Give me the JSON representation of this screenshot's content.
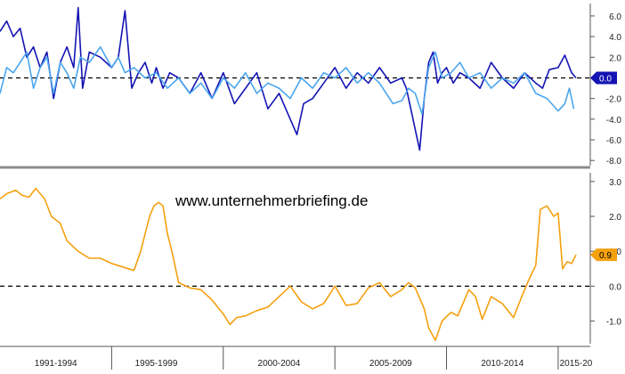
{
  "watermark": "www.unternehmerbriefing.de",
  "colors": {
    "dark_blue": "#1414b4",
    "light_blue": "#4aa6ee",
    "orange": "#f5a00f",
    "axis": "#555555",
    "divider": "#8c8c8c",
    "zero_line": "#000000"
  },
  "x_axis": {
    "range": [
      1990.0,
      2016.0
    ],
    "labels": [
      "1991-1994",
      "1995-1999",
      "2000-2004",
      "2005-2009",
      "2010-2014",
      "2015-20"
    ],
    "label_positions": [
      1992.5,
      1997.0,
      2002.5,
      2007.5,
      2012.5,
      2015.8
    ],
    "separators": [
      1995.0,
      2000.0,
      2005.0,
      2010.0,
      2015.0
    ]
  },
  "chart_data": [
    {
      "type": "line",
      "y_axis_side": "right",
      "ylim": [
        -8.5,
        7.2
      ],
      "y_ticks": [
        {
          "value": 6.0,
          "label": "6.0"
        },
        {
          "value": 4.0,
          "label": "4.0"
        },
        {
          "value": 2.0,
          "label": "2.0"
        },
        {
          "value": -2.0,
          "label": "-2.0"
        },
        {
          "value": -4.0,
          "label": "-4.0"
        },
        {
          "value": -6.0,
          "label": "-6.0"
        },
        {
          "value": -8.0,
          "label": "-8.0"
        }
      ],
      "reference_line": 0.0,
      "last_value_label": "0.0",
      "series": [
        {
          "color": "#1414b4",
          "x": [
            1990.0,
            1990.3,
            1990.6,
            1990.9,
            1991.2,
            1991.5,
            1991.8,
            1992.1,
            1992.4,
            1992.7,
            1993.0,
            1993.3,
            1993.5,
            1993.7,
            1994.0,
            1994.5,
            1995.0,
            1995.3,
            1995.6,
            1995.9,
            1996.2,
            1996.5,
            1996.8,
            1997.0,
            1997.3,
            1997.6,
            1998.0,
            1998.5,
            1999.0,
            1999.5,
            2000.0,
            2000.5,
            2001.0,
            2001.5,
            2002.0,
            2002.5,
            2003.0,
            2003.3,
            2003.6,
            2004.0,
            2004.5,
            2005.0,
            2005.5,
            2006.0,
            2006.5,
            2007.0,
            2007.5,
            2008.0,
            2008.2,
            2008.4,
            2008.6,
            2008.8,
            2009.0,
            2009.2,
            2009.4,
            2009.6,
            2009.8,
            2010.0,
            2010.3,
            2010.6,
            2011.0,
            2011.5,
            2012.0,
            2012.5,
            2013.0,
            2013.5,
            2014.0,
            2014.3,
            2014.6,
            2015.0,
            2015.3,
            2015.6,
            2015.8
          ],
          "values": [
            4.5,
            5.5,
            4.0,
            4.8,
            2.0,
            3.0,
            1.0,
            2.5,
            -2.0,
            1.5,
            3.0,
            1.0,
            6.8,
            -1.0,
            2.5,
            2.0,
            1.0,
            2.0,
            6.5,
            -1.0,
            0.5,
            1.5,
            -0.5,
            1.0,
            -1.0,
            0.5,
            0.0,
            -1.5,
            0.5,
            -2.0,
            0.5,
            -2.5,
            -1.0,
            0.5,
            -3.0,
            -1.5,
            -4.0,
            -5.5,
            -2.5,
            -2.0,
            -0.5,
            1.0,
            -1.0,
            0.5,
            -0.5,
            1.0,
            -0.5,
            0.0,
            -1.0,
            -3.0,
            -5.0,
            -7.0,
            -2.0,
            1.5,
            2.5,
            -0.5,
            0.5,
            1.0,
            -0.5,
            0.5,
            0.0,
            -1.0,
            1.5,
            0.0,
            -1.0,
            0.5,
            -0.5,
            -1.0,
            0.8,
            1.0,
            2.2,
            0.5,
            0.0
          ]
        },
        {
          "color": "#4aa6ee",
          "x": [
            1990.0,
            1990.3,
            1990.6,
            1990.9,
            1991.2,
            1991.5,
            1991.8,
            1992.1,
            1992.4,
            1992.7,
            1993.0,
            1993.3,
            1993.6,
            1994.0,
            1994.5,
            1995.0,
            1995.3,
            1995.6,
            1996.0,
            1996.5,
            1997.0,
            1997.5,
            1998.0,
            1998.5,
            1999.0,
            1999.5,
            2000.0,
            2000.5,
            2001.0,
            2001.5,
            2002.0,
            2002.5,
            2003.0,
            2003.5,
            2004.0,
            2004.5,
            2005.0,
            2005.5,
            2006.0,
            2006.5,
            2007.0,
            2007.3,
            2007.6,
            2008.0,
            2008.3,
            2008.6,
            2008.9,
            2009.2,
            2009.5,
            2009.8,
            2010.2,
            2010.6,
            2011.0,
            2011.5,
            2012.0,
            2012.5,
            2013.0,
            2013.5,
            2014.0,
            2014.5,
            2015.0,
            2015.3,
            2015.5,
            2015.7
          ],
          "values": [
            -1.5,
            1.0,
            0.5,
            1.5,
            2.5,
            -1.0,
            1.0,
            2.0,
            -1.5,
            1.5,
            0.5,
            -1.0,
            2.0,
            1.5,
            3.0,
            1.0,
            2.0,
            0.5,
            1.0,
            0.0,
            0.5,
            -1.0,
            0.0,
            -1.5,
            -0.5,
            -2.0,
            0.0,
            -1.0,
            0.5,
            -1.5,
            -0.5,
            -1.0,
            -2.0,
            0.0,
            -1.0,
            0.5,
            0.0,
            1.0,
            -0.5,
            0.5,
            -0.5,
            -1.5,
            -2.5,
            -2.2,
            -1.0,
            -1.5,
            -3.5,
            1.0,
            2.5,
            0.0,
            0.5,
            1.5,
            0.0,
            0.5,
            -1.0,
            0.0,
            -0.5,
            0.5,
            -1.5,
            -2.0,
            -3.2,
            -2.5,
            -1.0,
            -3.0
          ]
        }
      ]
    },
    {
      "type": "line",
      "y_axis_side": "right",
      "ylim": [
        -1.65,
        3.25
      ],
      "y_ticks": [
        {
          "value": 3.0,
          "label": "3.0"
        },
        {
          "value": 2.0,
          "label": "2.0"
        },
        {
          "value": 1.0,
          "label": "1.0"
        },
        {
          "value": 0.0,
          "label": "0.0"
        },
        {
          "value": -1.0,
          "label": "-1.0"
        }
      ],
      "reference_line": 0.0,
      "last_value_label": "0.9",
      "series": [
        {
          "color": "#f5a00f",
          "x": [
            1990.0,
            1990.3,
            1990.7,
            1991.0,
            1991.3,
            1991.6,
            1992.0,
            1992.3,
            1992.7,
            1993.0,
            1993.5,
            1994.0,
            1994.5,
            1995.0,
            1995.5,
            1996.0,
            1996.3,
            1996.5,
            1996.7,
            1996.9,
            1997.1,
            1997.3,
            1997.5,
            1997.7,
            1998.0,
            1998.5,
            1999.0,
            1999.5,
            2000.0,
            2000.3,
            2000.6,
            2001.0,
            2001.5,
            2002.0,
            2002.5,
            2003.0,
            2003.5,
            2004.0,
            2004.5,
            2005.0,
            2005.5,
            2006.0,
            2006.5,
            2007.0,
            2007.5,
            2008.0,
            2008.3,
            2008.6,
            2009.0,
            2009.2,
            2009.5,
            2009.8,
            2010.2,
            2010.5,
            2011.0,
            2011.3,
            2011.6,
            2012.0,
            2012.5,
            2013.0,
            2013.4,
            2013.7,
            2014.0,
            2014.2,
            2014.5,
            2014.8,
            2015.0,
            2015.2,
            2015.4,
            2015.6,
            2015.8
          ],
          "values": [
            2.5,
            2.65,
            2.75,
            2.6,
            2.55,
            2.8,
            2.5,
            2.0,
            1.8,
            1.3,
            1.0,
            0.8,
            0.8,
            0.65,
            0.55,
            0.45,
            1.0,
            1.5,
            2.0,
            2.3,
            2.4,
            2.3,
            1.5,
            1.0,
            0.1,
            -0.05,
            -0.1,
            -0.4,
            -0.8,
            -1.1,
            -0.9,
            -0.85,
            -0.7,
            -0.6,
            -0.3,
            0.0,
            -0.45,
            -0.65,
            -0.5,
            0.0,
            -0.55,
            -0.5,
            -0.05,
            0.1,
            -0.3,
            -0.1,
            0.1,
            -0.05,
            -0.65,
            -1.2,
            -1.55,
            -1.0,
            -0.75,
            -0.85,
            -0.1,
            -0.3,
            -0.95,
            -0.3,
            -0.5,
            -0.9,
            -0.25,
            0.2,
            0.6,
            2.2,
            2.3,
            2.0,
            2.1,
            0.5,
            0.7,
            0.65,
            0.9
          ]
        }
      ]
    }
  ]
}
